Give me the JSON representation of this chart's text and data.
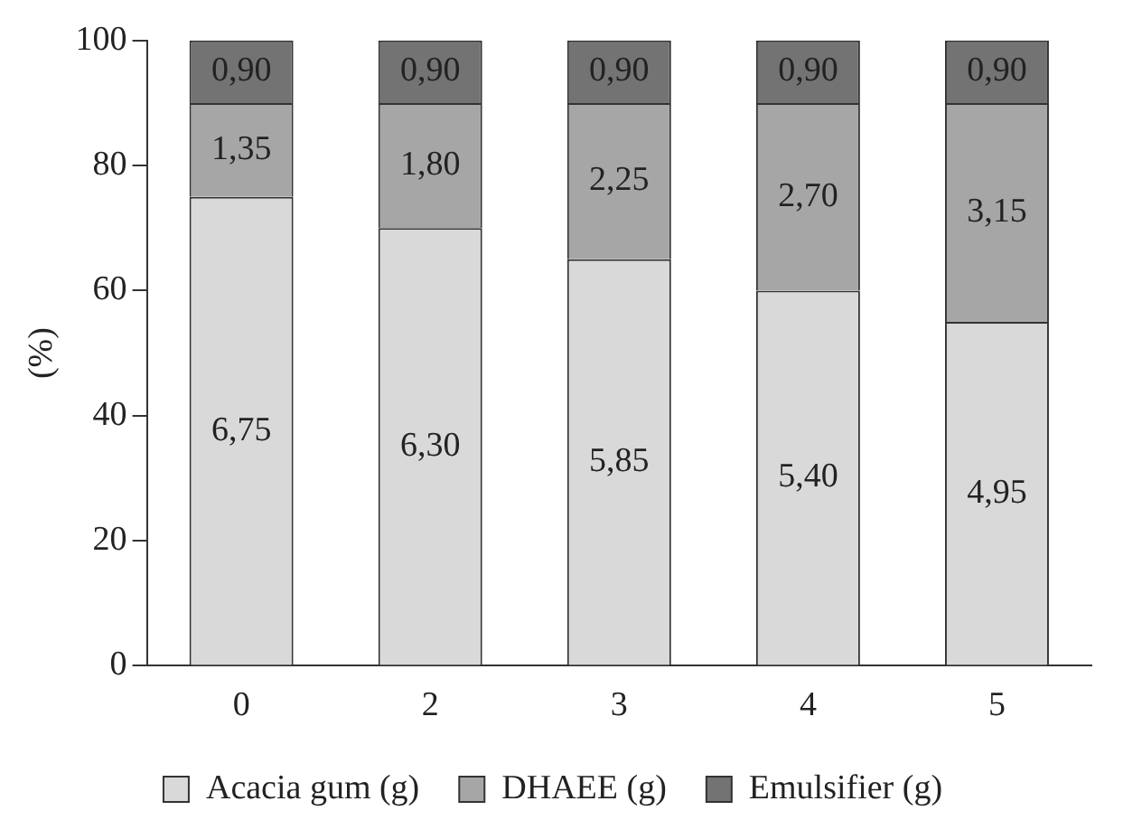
{
  "chart_data": {
    "type": "bar",
    "stacked": true,
    "ylabel": "(%)",
    "categories": [
      "0",
      "2",
      "3",
      "4",
      "5"
    ],
    "series": [
      {
        "name": "Acacia gum (g)",
        "color": "#d9d9d9",
        "values": [
          75,
          70,
          65,
          60,
          55
        ]
      },
      {
        "name": "DHAEE (g)",
        "color": "#a6a6a6",
        "values": [
          15,
          20,
          25,
          30,
          35
        ]
      },
      {
        "name": "Emulsifier (g)",
        "color": "#737373",
        "values": [
          10,
          10,
          10,
          10,
          10
        ]
      }
    ],
    "annotations": [
      "6,75",
      "6,30",
      "5,85",
      "5,40",
      "4,95",
      "1,35",
      "1,80",
      "2,25",
      "2,70",
      "3,15",
      "0,90",
      "0,90",
      "0,90",
      "0,90",
      "0,90"
    ],
    "ylim": [
      0,
      100
    ],
    "yticks": [
      0,
      20,
      40,
      60,
      80,
      100
    ],
    "grid": false,
    "legend": "bottom"
  }
}
